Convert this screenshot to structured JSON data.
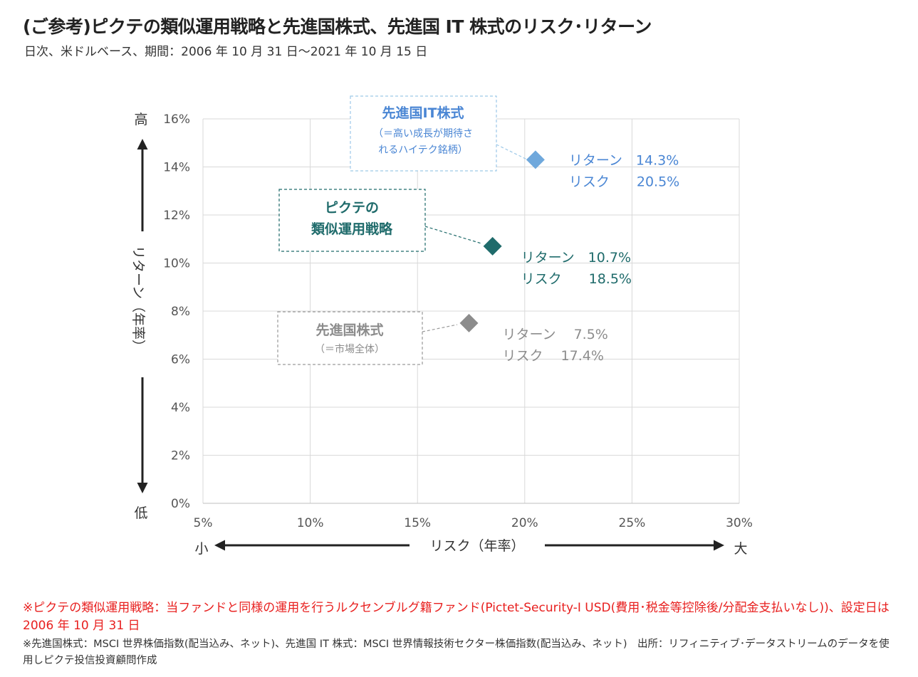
{
  "header": {
    "title": "(ご参考)ピクテの類似運用戦略と先進国株式、先進国 IT 株式のリスク･リターン",
    "subtitle": "日次、米ドルベース、期間：2006 年 10 月 31 日～2021 年 10 月 15 日"
  },
  "chart_data": {
    "type": "scatter",
    "xlabel": "リスク（年率）",
    "ylabel": "リターン（年率）",
    "xlim": [
      5,
      30
    ],
    "ylim": [
      0,
      16
    ],
    "x_ticks": [
      "5%",
      "10%",
      "15%",
      "20%",
      "25%",
      "30%"
    ],
    "y_ticks": [
      "0%",
      "2%",
      "4%",
      "6%",
      "8%",
      "10%",
      "12%",
      "14%",
      "16%"
    ],
    "grid": true,
    "x_arrow_left": "小",
    "x_arrow_right": "大",
    "y_arrow_top": "高",
    "y_arrow_bottom": "低",
    "series": [
      {
        "name": "先進国IT株式",
        "box_sub": [
          "（＝高い成長が期待さ",
          "れるハイテク銘柄）"
        ],
        "x": 20.5,
        "y": 14.3,
        "color": "#6fa8dc",
        "label_color": "#4a86d4",
        "return_label": "リターン　14.3%",
        "risk_label": "リスク　　20.5%"
      },
      {
        "name": "ピクテの類似運用戦略",
        "box_title_lines": [
          "ピクテの",
          "類似運用戦略"
        ],
        "x": 18.5,
        "y": 10.7,
        "color": "#1f6b6b",
        "label_color": "#1f6b6b",
        "return_label": "リターン　10.7%",
        "risk_label": "リスク　　18.5%"
      },
      {
        "name": "先進国株式",
        "box_sub": [
          "（＝市場全体）"
        ],
        "x": 17.4,
        "y": 7.5,
        "color": "#8c8c8c",
        "label_color": "#8c8c8c",
        "return_label": "リターン　 7.5%",
        "risk_label": "リスク　 17.4%"
      }
    ]
  },
  "notes": {
    "red": "※ピクテの類似運用戦略：当ファンドと同様の運用を行うルクセンブルグ籍ファンド(Pictet-Security-I USD(費用･税金等控除後/分配金支払いなし))、設定日は 2006 年 10 月 31 日",
    "black": "※先進国株式：MSCI 世界株価指数(配当込み、ネット)、先進国 IT 株式：MSCI 世界情報技術セクター株価指数(配当込み、ネット)　出所：リフィニティブ･データストリームのデータを使用しピクテ投信投資顧問作成"
  }
}
